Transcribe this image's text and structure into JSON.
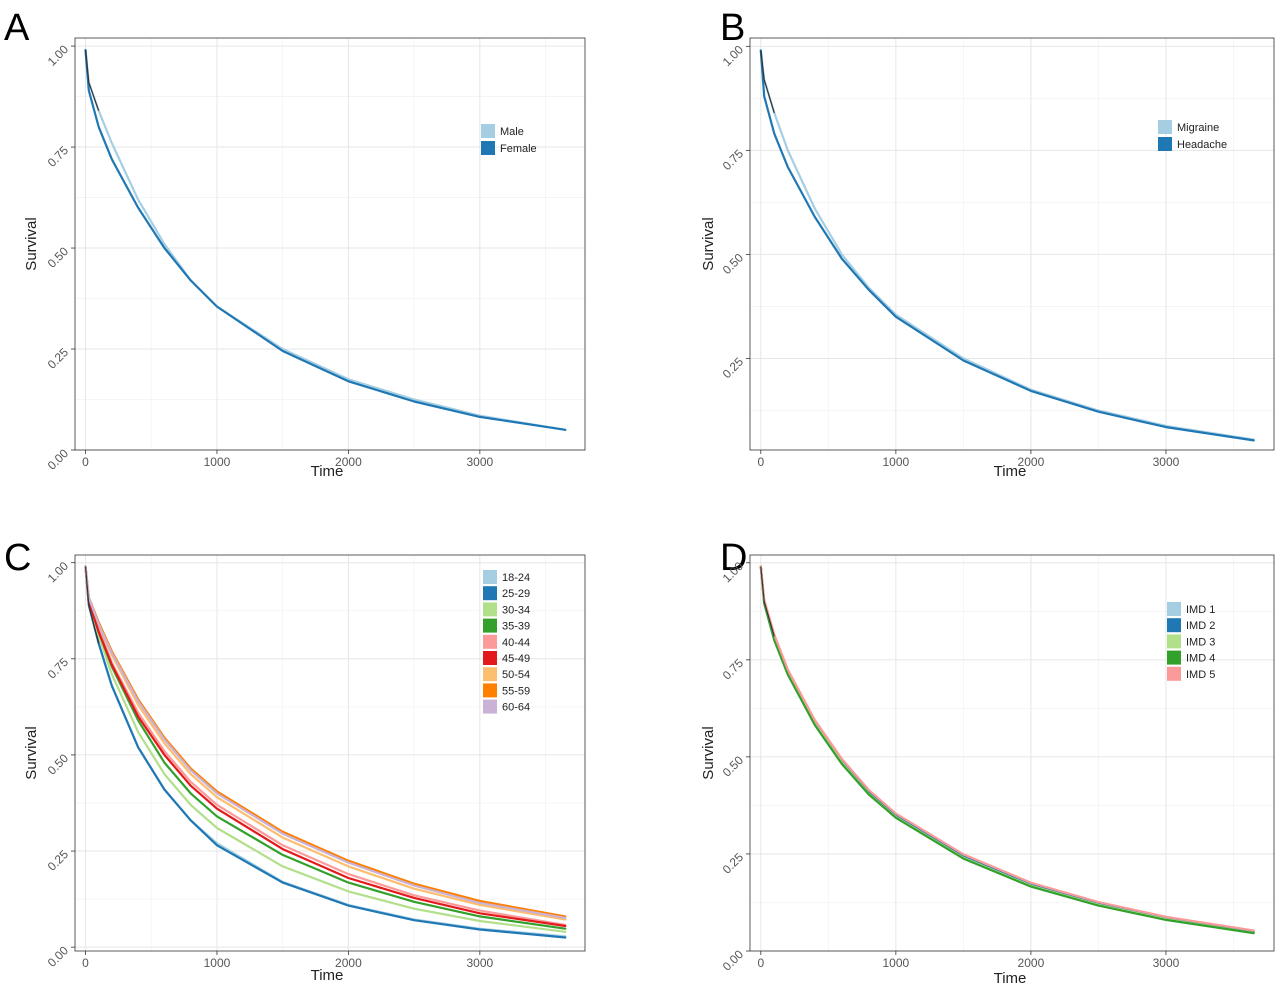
{
  "chart_data": [
    {
      "panel_label": "A",
      "type": "line",
      "xlabel": "Time",
      "ylabel": "Survival",
      "xlim": [
        -80,
        3800
      ],
      "ylim": [
        0.0,
        1.02
      ],
      "x_ticks": [
        0,
        1000,
        2000,
        3000
      ],
      "x_tick_labels": [
        "0",
        "1000",
        "2000",
        "3000"
      ],
      "y_ticks": [
        0.0,
        0.25,
        0.5,
        0.75,
        1.0
      ],
      "y_tick_labels": [
        "0.00",
        "0.25",
        "0.50",
        "0.75",
        "1.00"
      ],
      "grid": true,
      "legend_position": "right",
      "series": [
        {
          "name": "Male",
          "color": "#a6cee3",
          "x": [
            0,
            25,
            100,
            200,
            400,
            600,
            800,
            1000,
            1500,
            2000,
            2500,
            3000,
            3650
          ],
          "y": [
            0.99,
            0.91,
            0.84,
            0.76,
            0.62,
            0.51,
            0.42,
            0.355,
            0.25,
            0.175,
            0.125,
            0.085,
            0.05
          ]
        },
        {
          "name": "Female",
          "color": "#1f78b4",
          "x": [
            0,
            25,
            100,
            200,
            400,
            600,
            800,
            1000,
            1500,
            2000,
            2500,
            3000,
            3650
          ],
          "y": [
            0.99,
            0.89,
            0.8,
            0.72,
            0.6,
            0.5,
            0.42,
            0.355,
            0.245,
            0.17,
            0.12,
            0.082,
            0.05
          ]
        }
      ]
    },
    {
      "panel_label": "B",
      "type": "line",
      "xlabel": "Time",
      "ylabel": "Survival",
      "xlim": [
        -80,
        3800
      ],
      "ylim": [
        0.03,
        1.02
      ],
      "x_ticks": [
        0,
        1000,
        2000,
        3000
      ],
      "x_tick_labels": [
        "0",
        "1000",
        "2000",
        "3000"
      ],
      "y_ticks": [
        0.25,
        0.5,
        0.75,
        1.0
      ],
      "y_tick_labels": [
        "0.25",
        "0.50",
        "0.75",
        "1.00"
      ],
      "grid": true,
      "legend_position": "right",
      "series": [
        {
          "name": "Migraine",
          "color": "#a6cee3",
          "x": [
            0,
            25,
            100,
            200,
            400,
            600,
            800,
            1000,
            1500,
            2000,
            2500,
            3000,
            3650
          ],
          "y": [
            0.99,
            0.92,
            0.84,
            0.75,
            0.61,
            0.5,
            0.42,
            0.355,
            0.25,
            0.175,
            0.125,
            0.088,
            0.055
          ]
        },
        {
          "name": "Headache",
          "color": "#1f78b4",
          "x": [
            0,
            25,
            100,
            200,
            400,
            600,
            800,
            1000,
            1500,
            2000,
            2500,
            3000,
            3650
          ],
          "y": [
            0.99,
            0.88,
            0.79,
            0.71,
            0.59,
            0.49,
            0.415,
            0.35,
            0.245,
            0.172,
            0.122,
            0.085,
            0.053
          ]
        }
      ]
    },
    {
      "panel_label": "C",
      "type": "line",
      "xlabel": "Time",
      "ylabel": "Survival",
      "xlim": [
        -80,
        3800
      ],
      "ylim": [
        -0.01,
        1.02
      ],
      "x_ticks": [
        0,
        1000,
        2000,
        3000
      ],
      "x_tick_labels": [
        "0",
        "1000",
        "2000",
        "3000"
      ],
      "y_ticks": [
        0.0,
        0.25,
        0.5,
        0.75,
        1.0
      ],
      "y_tick_labels": [
        "0.00",
        "0.25",
        "0.50",
        "0.75",
        "1.00"
      ],
      "grid": true,
      "legend_position": "top-right",
      "series": [
        {
          "name": "18-24",
          "color": "#a6cee3",
          "x": [
            0,
            25,
            100,
            200,
            400,
            600,
            800,
            1000,
            1500,
            2000,
            2500,
            3000,
            3650
          ],
          "y": [
            0.99,
            0.89,
            0.79,
            0.68,
            0.52,
            0.41,
            0.33,
            0.27,
            0.17,
            0.11,
            0.072,
            0.048,
            0.028
          ]
        },
        {
          "name": "25-29",
          "color": "#1f78b4",
          "x": [
            0,
            25,
            100,
            200,
            400,
            600,
            800,
            1000,
            1500,
            2000,
            2500,
            3000,
            3650
          ],
          "y": [
            0.99,
            0.89,
            0.79,
            0.68,
            0.52,
            0.41,
            0.33,
            0.265,
            0.168,
            0.108,
            0.07,
            0.046,
            0.025
          ]
        },
        {
          "name": "30-34",
          "color": "#b2df8a",
          "x": [
            0,
            25,
            100,
            200,
            400,
            600,
            800,
            1000,
            1500,
            2000,
            2500,
            3000,
            3650
          ],
          "y": [
            0.99,
            0.9,
            0.81,
            0.71,
            0.56,
            0.45,
            0.37,
            0.31,
            0.21,
            0.145,
            0.1,
            0.068,
            0.04
          ]
        },
        {
          "name": "35-39",
          "color": "#33a02c",
          "x": [
            0,
            25,
            100,
            200,
            400,
            600,
            800,
            1000,
            1500,
            2000,
            2500,
            3000,
            3650
          ],
          "y": [
            0.99,
            0.9,
            0.82,
            0.73,
            0.59,
            0.48,
            0.4,
            0.34,
            0.24,
            0.168,
            0.118,
            0.08,
            0.048
          ]
        },
        {
          "name": "40-44",
          "color": "#fb9a99",
          "x": [
            0,
            25,
            100,
            200,
            400,
            600,
            800,
            1000,
            1500,
            2000,
            2500,
            3000,
            3650
          ],
          "y": [
            0.99,
            0.91,
            0.83,
            0.74,
            0.61,
            0.51,
            0.43,
            0.37,
            0.265,
            0.19,
            0.135,
            0.095,
            0.058
          ]
        },
        {
          "name": "45-49",
          "color": "#e31a1c",
          "x": [
            0,
            25,
            100,
            200,
            400,
            600,
            800,
            1000,
            1500,
            2000,
            2500,
            3000,
            3650
          ],
          "y": [
            0.99,
            0.9,
            0.82,
            0.735,
            0.6,
            0.5,
            0.42,
            0.36,
            0.255,
            0.18,
            0.128,
            0.088,
            0.055
          ]
        },
        {
          "name": "50-54",
          "color": "#fdbf6f",
          "x": [
            0,
            25,
            100,
            200,
            400,
            600,
            800,
            1000,
            1500,
            2000,
            2500,
            3000,
            3650
          ],
          "y": [
            0.99,
            0.91,
            0.84,
            0.76,
            0.63,
            0.53,
            0.45,
            0.39,
            0.285,
            0.21,
            0.152,
            0.11,
            0.072
          ]
        },
        {
          "name": "55-59",
          "color": "#ff7f00",
          "x": [
            0,
            25,
            100,
            200,
            400,
            600,
            800,
            1000,
            1500,
            2000,
            2500,
            3000,
            3650
          ],
          "y": [
            0.99,
            0.91,
            0.845,
            0.77,
            0.645,
            0.545,
            0.465,
            0.405,
            0.3,
            0.225,
            0.165,
            0.12,
            0.08
          ]
        },
        {
          "name": "60-64",
          "color": "#cab2d6",
          "x": [
            0,
            25,
            100,
            200,
            400,
            600,
            800,
            1000,
            1500,
            2000,
            2500,
            3000,
            3650
          ],
          "y": [
            0.99,
            0.91,
            0.84,
            0.765,
            0.64,
            0.54,
            0.46,
            0.4,
            0.295,
            0.22,
            0.16,
            0.115,
            0.076
          ]
        }
      ]
    },
    {
      "panel_label": "D",
      "type": "line",
      "xlabel": "Time",
      "ylabel": "Survival",
      "xlim": [
        -80,
        3800
      ],
      "ylim": [
        0.0,
        1.02
      ],
      "x_ticks": [
        0,
        1000,
        2000,
        3000
      ],
      "x_tick_labels": [
        "0",
        "1000",
        "2000",
        "3000"
      ],
      "y_ticks": [
        0.0,
        0.25,
        0.5,
        0.75,
        1.0
      ],
      "y_tick_labels": [
        "0.00",
        "0.25",
        "0.50",
        "0.75",
        "1.00"
      ],
      "grid": true,
      "legend_position": "right",
      "series": [
        {
          "name": "IMD 1",
          "color": "#a6cee3",
          "x": [
            0,
            25,
            100,
            200,
            400,
            600,
            800,
            1000,
            1500,
            2000,
            2500,
            3000,
            3650
          ],
          "y": [
            0.99,
            0.9,
            0.81,
            0.72,
            0.59,
            0.49,
            0.41,
            0.35,
            0.245,
            0.172,
            0.123,
            0.085,
            0.05
          ]
        },
        {
          "name": "IMD 2",
          "color": "#1f78b4",
          "x": [
            0,
            25,
            100,
            200,
            400,
            600,
            800,
            1000,
            1500,
            2000,
            2500,
            3000,
            3650
          ],
          "y": [
            0.99,
            0.9,
            0.81,
            0.72,
            0.59,
            0.49,
            0.41,
            0.348,
            0.243,
            0.17,
            0.121,
            0.084,
            0.049
          ]
        },
        {
          "name": "IMD 3",
          "color": "#b2df8a",
          "x": [
            0,
            25,
            100,
            200,
            400,
            600,
            800,
            1000,
            1500,
            2000,
            2500,
            3000,
            3650
          ],
          "y": [
            0.99,
            0.895,
            0.805,
            0.715,
            0.585,
            0.485,
            0.405,
            0.345,
            0.24,
            0.168,
            0.119,
            0.082,
            0.047
          ]
        },
        {
          "name": "IMD 4",
          "color": "#33a02c",
          "x": [
            0,
            25,
            100,
            200,
            400,
            600,
            800,
            1000,
            1500,
            2000,
            2500,
            3000,
            3650
          ],
          "y": [
            0.99,
            0.895,
            0.8,
            0.712,
            0.582,
            0.482,
            0.403,
            0.343,
            0.238,
            0.166,
            0.117,
            0.08,
            0.046
          ]
        },
        {
          "name": "IMD 5",
          "color": "#fb9a99",
          "x": [
            0,
            25,
            100,
            200,
            400,
            600,
            800,
            1000,
            1500,
            2000,
            2500,
            3000,
            3650
          ],
          "y": [
            0.99,
            0.905,
            0.815,
            0.725,
            0.595,
            0.495,
            0.415,
            0.354,
            0.249,
            0.176,
            0.126,
            0.088,
            0.053
          ]
        }
      ]
    }
  ]
}
